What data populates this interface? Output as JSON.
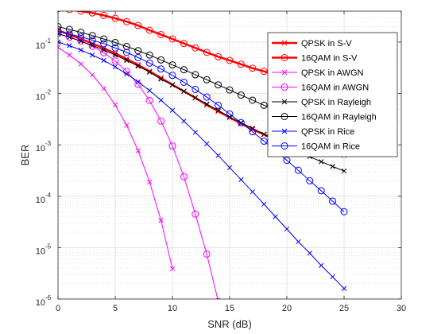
{
  "chart_data": {
    "type": "line",
    "xlabel": "SNR (dB)",
    "ylabel": "BER",
    "xlim": [
      0,
      30
    ],
    "ylim": [
      1e-06,
      0.4
    ],
    "y_scale": "log",
    "grid": true,
    "minor_grid": true,
    "legend_position": "top-right",
    "x_ticks": [
      "0",
      "5",
      "10",
      "15",
      "20",
      "25",
      "30"
    ],
    "y_ticks": [
      {
        "base": "10",
        "exp": "-6"
      },
      {
        "base": "10",
        "exp": "-5"
      },
      {
        "base": "10",
        "exp": "-4"
      },
      {
        "base": "10",
        "exp": "-3"
      },
      {
        "base": "10",
        "exp": "-2"
      },
      {
        "base": "10",
        "exp": "-1"
      }
    ],
    "series": [
      {
        "name": "QPSK in S-V",
        "color": "#ff0000",
        "marker": "x",
        "line_width": 2.5,
        "x": [
          0,
          1,
          2,
          3,
          4,
          5,
          6,
          7,
          8,
          9,
          10,
          11,
          12,
          13,
          14,
          15,
          16,
          17,
          18,
          19,
          20,
          21,
          22,
          23,
          24,
          25
        ],
        "y": [
          0.17,
          0.14,
          0.115,
          0.094,
          0.076,
          0.06,
          0.047,
          0.036,
          0.027,
          0.02,
          0.0148,
          0.011,
          0.0082,
          0.006,
          0.0045,
          0.0034,
          0.0026,
          0.002,
          0.0016,
          0.0013,
          0.0011,
          0.00093,
          0.0008,
          0.00072,
          0.00067,
          0.00063
        ]
      },
      {
        "name": "16QAM in S-V",
        "color": "#ff0000",
        "marker": "o",
        "line_width": 2.5,
        "x": [
          0,
          1,
          2,
          3,
          4,
          5,
          6,
          7,
          8,
          9,
          10,
          11,
          12,
          13,
          14,
          15,
          16,
          17,
          18,
          19,
          20,
          21,
          22,
          23,
          24,
          25
        ],
        "y": [
          0.45,
          0.43,
          0.4,
          0.37,
          0.33,
          0.29,
          0.25,
          0.21,
          0.17,
          0.14,
          0.115,
          0.094,
          0.077,
          0.063,
          0.052,
          0.044,
          0.037,
          0.031,
          0.027,
          0.023,
          0.02,
          0.018,
          0.016,
          0.015,
          0.014,
          0.0135
        ]
      },
      {
        "name": "QPSK in AWGN",
        "color": "#ff00ff",
        "marker": "x",
        "line_width": 1,
        "x": [
          0,
          1,
          2,
          3,
          4,
          5,
          6,
          7,
          8,
          9,
          10
        ],
        "y": [
          0.079,
          0.056,
          0.0375,
          0.023,
          0.0125,
          0.006,
          0.0024,
          0.00077,
          0.00019,
          3.4e-05,
          3.9e-06
        ]
      },
      {
        "name": "16QAM in AWGN",
        "color": "#ff00ff",
        "marker": "o",
        "line_width": 1,
        "x": [
          0,
          1,
          2,
          3,
          4,
          5,
          6,
          7,
          8,
          9,
          10,
          11,
          12,
          13,
          14
        ],
        "y": [
          0.145,
          0.125,
          0.105,
          0.083,
          0.062,
          0.043,
          0.027,
          0.015,
          0.0073,
          0.0029,
          0.00095,
          0.00024,
          4.5e-05,
          7.5e-06,
          9e-07
        ]
      },
      {
        "name": "QPSK in Rayleigh",
        "color": "#000000",
        "marker": "x",
        "line_width": 1,
        "x": [
          0,
          1,
          2,
          3,
          4,
          5,
          6,
          7,
          8,
          9,
          10,
          11,
          12,
          13,
          14,
          15,
          16,
          17,
          18,
          19,
          20,
          21,
          22,
          23,
          24,
          25
        ],
        "y": [
          0.146,
          0.124,
          0.104,
          0.086,
          0.07,
          0.056,
          0.044,
          0.034,
          0.026,
          0.019,
          0.0146,
          0.011,
          0.0083,
          0.0062,
          0.0047,
          0.0035,
          0.0027,
          0.0021,
          0.0016,
          0.0012,
          0.00094,
          0.00074,
          0.00059,
          0.00047,
          0.00038,
          0.00031
        ]
      },
      {
        "name": "16QAM in Rayleigh",
        "color": "#000000",
        "marker": "o",
        "line_width": 1,
        "x": [
          0,
          1,
          2,
          3,
          4,
          5,
          6,
          7,
          8,
          9,
          10,
          11,
          12,
          13,
          14,
          15,
          16,
          17,
          18,
          19,
          20,
          21,
          22,
          23,
          24,
          25
        ],
        "y": [
          0.2,
          0.176,
          0.155,
          0.134,
          0.115,
          0.098,
          0.082,
          0.068,
          0.056,
          0.045,
          0.036,
          0.029,
          0.0232,
          0.0185,
          0.0147,
          0.0117,
          0.0093,
          0.0074,
          0.0059,
          0.0047,
          0.0037,
          0.003,
          0.0024,
          0.0019,
          0.00155,
          0.00125
        ]
      },
      {
        "name": "QPSK in Rice",
        "color": "#0000ff",
        "marker": "x",
        "line_width": 1,
        "x": [
          0,
          1,
          2,
          3,
          4,
          5,
          6,
          7,
          8,
          9,
          10,
          11,
          12,
          13,
          14,
          15,
          16,
          17,
          18,
          19,
          20,
          21,
          22,
          23,
          24,
          25
        ],
        "y": [
          0.1,
          0.085,
          0.07,
          0.056,
          0.044,
          0.033,
          0.024,
          0.0168,
          0.0114,
          0.0074,
          0.0047,
          0.0029,
          0.00175,
          0.00105,
          0.00062,
          0.00036,
          0.00021,
          0.000122,
          7e-05,
          4e-05,
          2.3e-05,
          1.3e-05,
          7.8e-06,
          4.5e-06,
          2.7e-06,
          1.6e-06
        ]
      },
      {
        "name": "16QAM in Rice",
        "color": "#0000ff",
        "marker": "o",
        "line_width": 1,
        "x": [
          0,
          1,
          2,
          3,
          4,
          5,
          6,
          7,
          8,
          9,
          10,
          11,
          12,
          13,
          14,
          15,
          16,
          17,
          18,
          19,
          20,
          21,
          22,
          23,
          24,
          25
        ],
        "y": [
          0.16,
          0.143,
          0.126,
          0.109,
          0.093,
          0.077,
          0.063,
          0.05,
          0.039,
          0.03,
          0.0225,
          0.0165,
          0.012,
          0.0085,
          0.0059,
          0.004,
          0.0027,
          0.0018,
          0.00118,
          0.00077,
          0.0005,
          0.00032,
          0.0002,
          0.000128,
          8e-05,
          5e-05
        ]
      }
    ]
  }
}
